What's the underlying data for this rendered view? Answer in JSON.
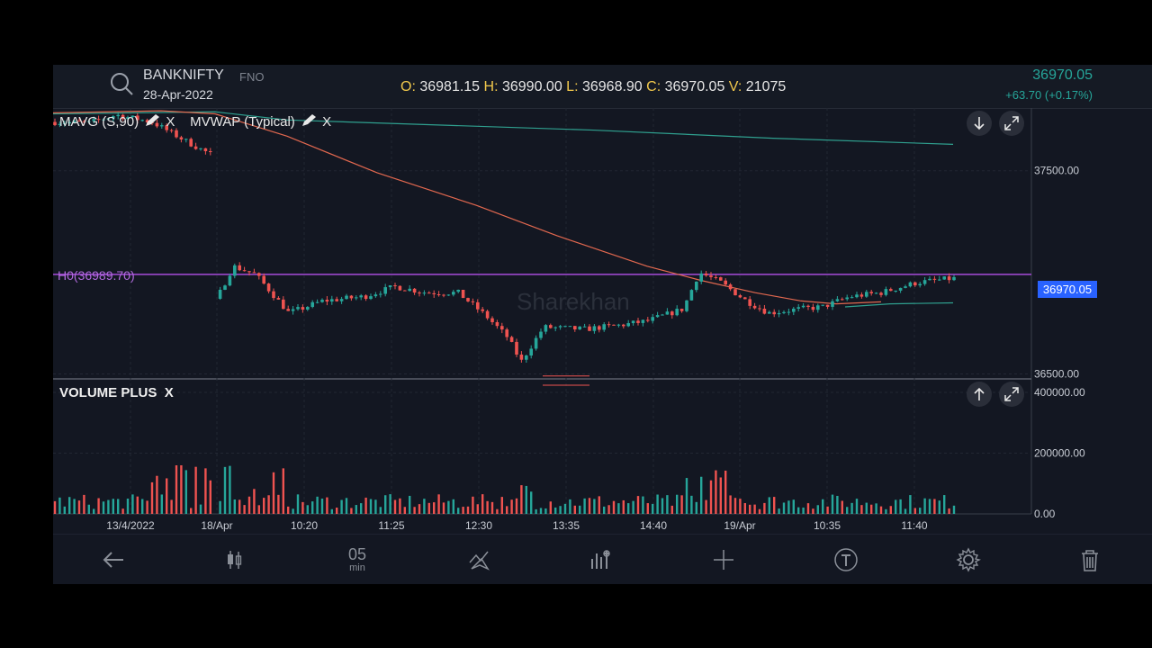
{
  "header": {
    "symbol": "BANKNIFTY",
    "segment": "FNO",
    "date": "28-Apr-2022",
    "ohlc": {
      "open_label": "O:",
      "open": "36981.15",
      "high_label": "H:",
      "high": "36990.00",
      "low_label": "L:",
      "low": "36968.90",
      "close_label": "C:",
      "close": "36970.05",
      "volume_label": "V:",
      "volume": "21075"
    },
    "ltp": "36970.05",
    "change": "+63.70 (+0.17%)"
  },
  "indicators": {
    "mavg_label": "MAVG (S,90)",
    "mvwap_label": "MVWAP (Typical)",
    "close_glyph": "X",
    "hline_label": "H0(36989.70)",
    "price_tag": "36970.05",
    "watermark": "Sharekhan"
  },
  "volume_panel": {
    "title": "VOLUME PLUS",
    "close_glyph": "X"
  },
  "colors": {
    "up": "#26a69a",
    "down": "#ef5350",
    "mavg": "#e2684f",
    "mvwap": "#2fa08f",
    "hline": "#a64bd9",
    "price_tag_bg": "#2962ff"
  },
  "chart_data": {
    "type": "candlestick",
    "price_axis_ticks": [
      "37500.00",
      "36500.00"
    ],
    "volume_axis_ticks": [
      "400000.00",
      "200000.00",
      "0.00"
    ],
    "x_tick_labels": [
      "13/4/2022",
      "18/Apr",
      "10:20",
      "11:25",
      "12:30",
      "13:35",
      "14:40",
      "19/Apr",
      "10:35",
      "11:40"
    ],
    "horizontal_line": 36989.7,
    "last_price": 36970.05,
    "price_range": [
      36480,
      37800
    ],
    "volume_range": [
      0,
      400000
    ]
  },
  "toolbar": {
    "interval_value": "05",
    "interval_unit": "min"
  }
}
